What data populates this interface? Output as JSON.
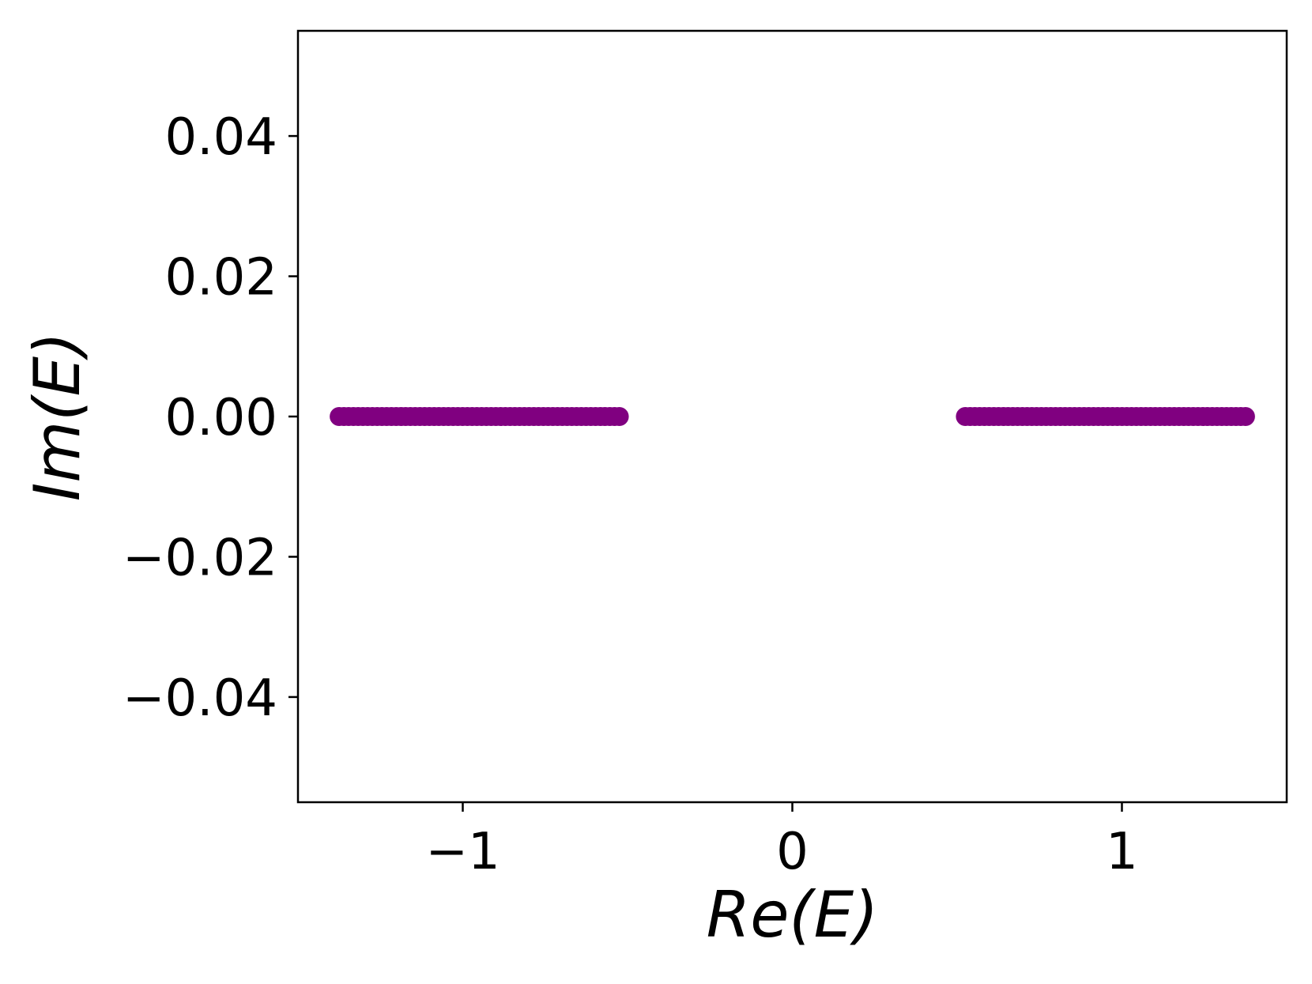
{
  "chart_data": {
    "type": "scatter",
    "title": "",
    "xlabel": "Re(E)",
    "ylabel": "Im(E)",
    "xlim": [
      -1.5,
      1.5
    ],
    "ylim": [
      -0.055,
      0.055
    ],
    "x_ticks": [
      {
        "value": -1,
        "label": "−1"
      },
      {
        "value": 0,
        "label": "0"
      },
      {
        "value": 1,
        "label": "1"
      }
    ],
    "y_ticks": [
      {
        "value": 0.04,
        "label": "0.04"
      },
      {
        "value": 0.02,
        "label": "0.02"
      },
      {
        "value": 0.0,
        "label": "0.00"
      },
      {
        "value": -0.02,
        "label": "−0.02"
      },
      {
        "value": -0.04,
        "label": "−0.04"
      }
    ],
    "grid": false,
    "legend": "none",
    "marker_color": "#800080",
    "series": [
      {
        "x_range": [
          -1.375,
          -0.525
        ],
        "y": 0.0,
        "points": 60
      },
      {
        "x_range": [
          0.525,
          1.375
        ],
        "y": 0.0,
        "points": 60
      }
    ]
  }
}
